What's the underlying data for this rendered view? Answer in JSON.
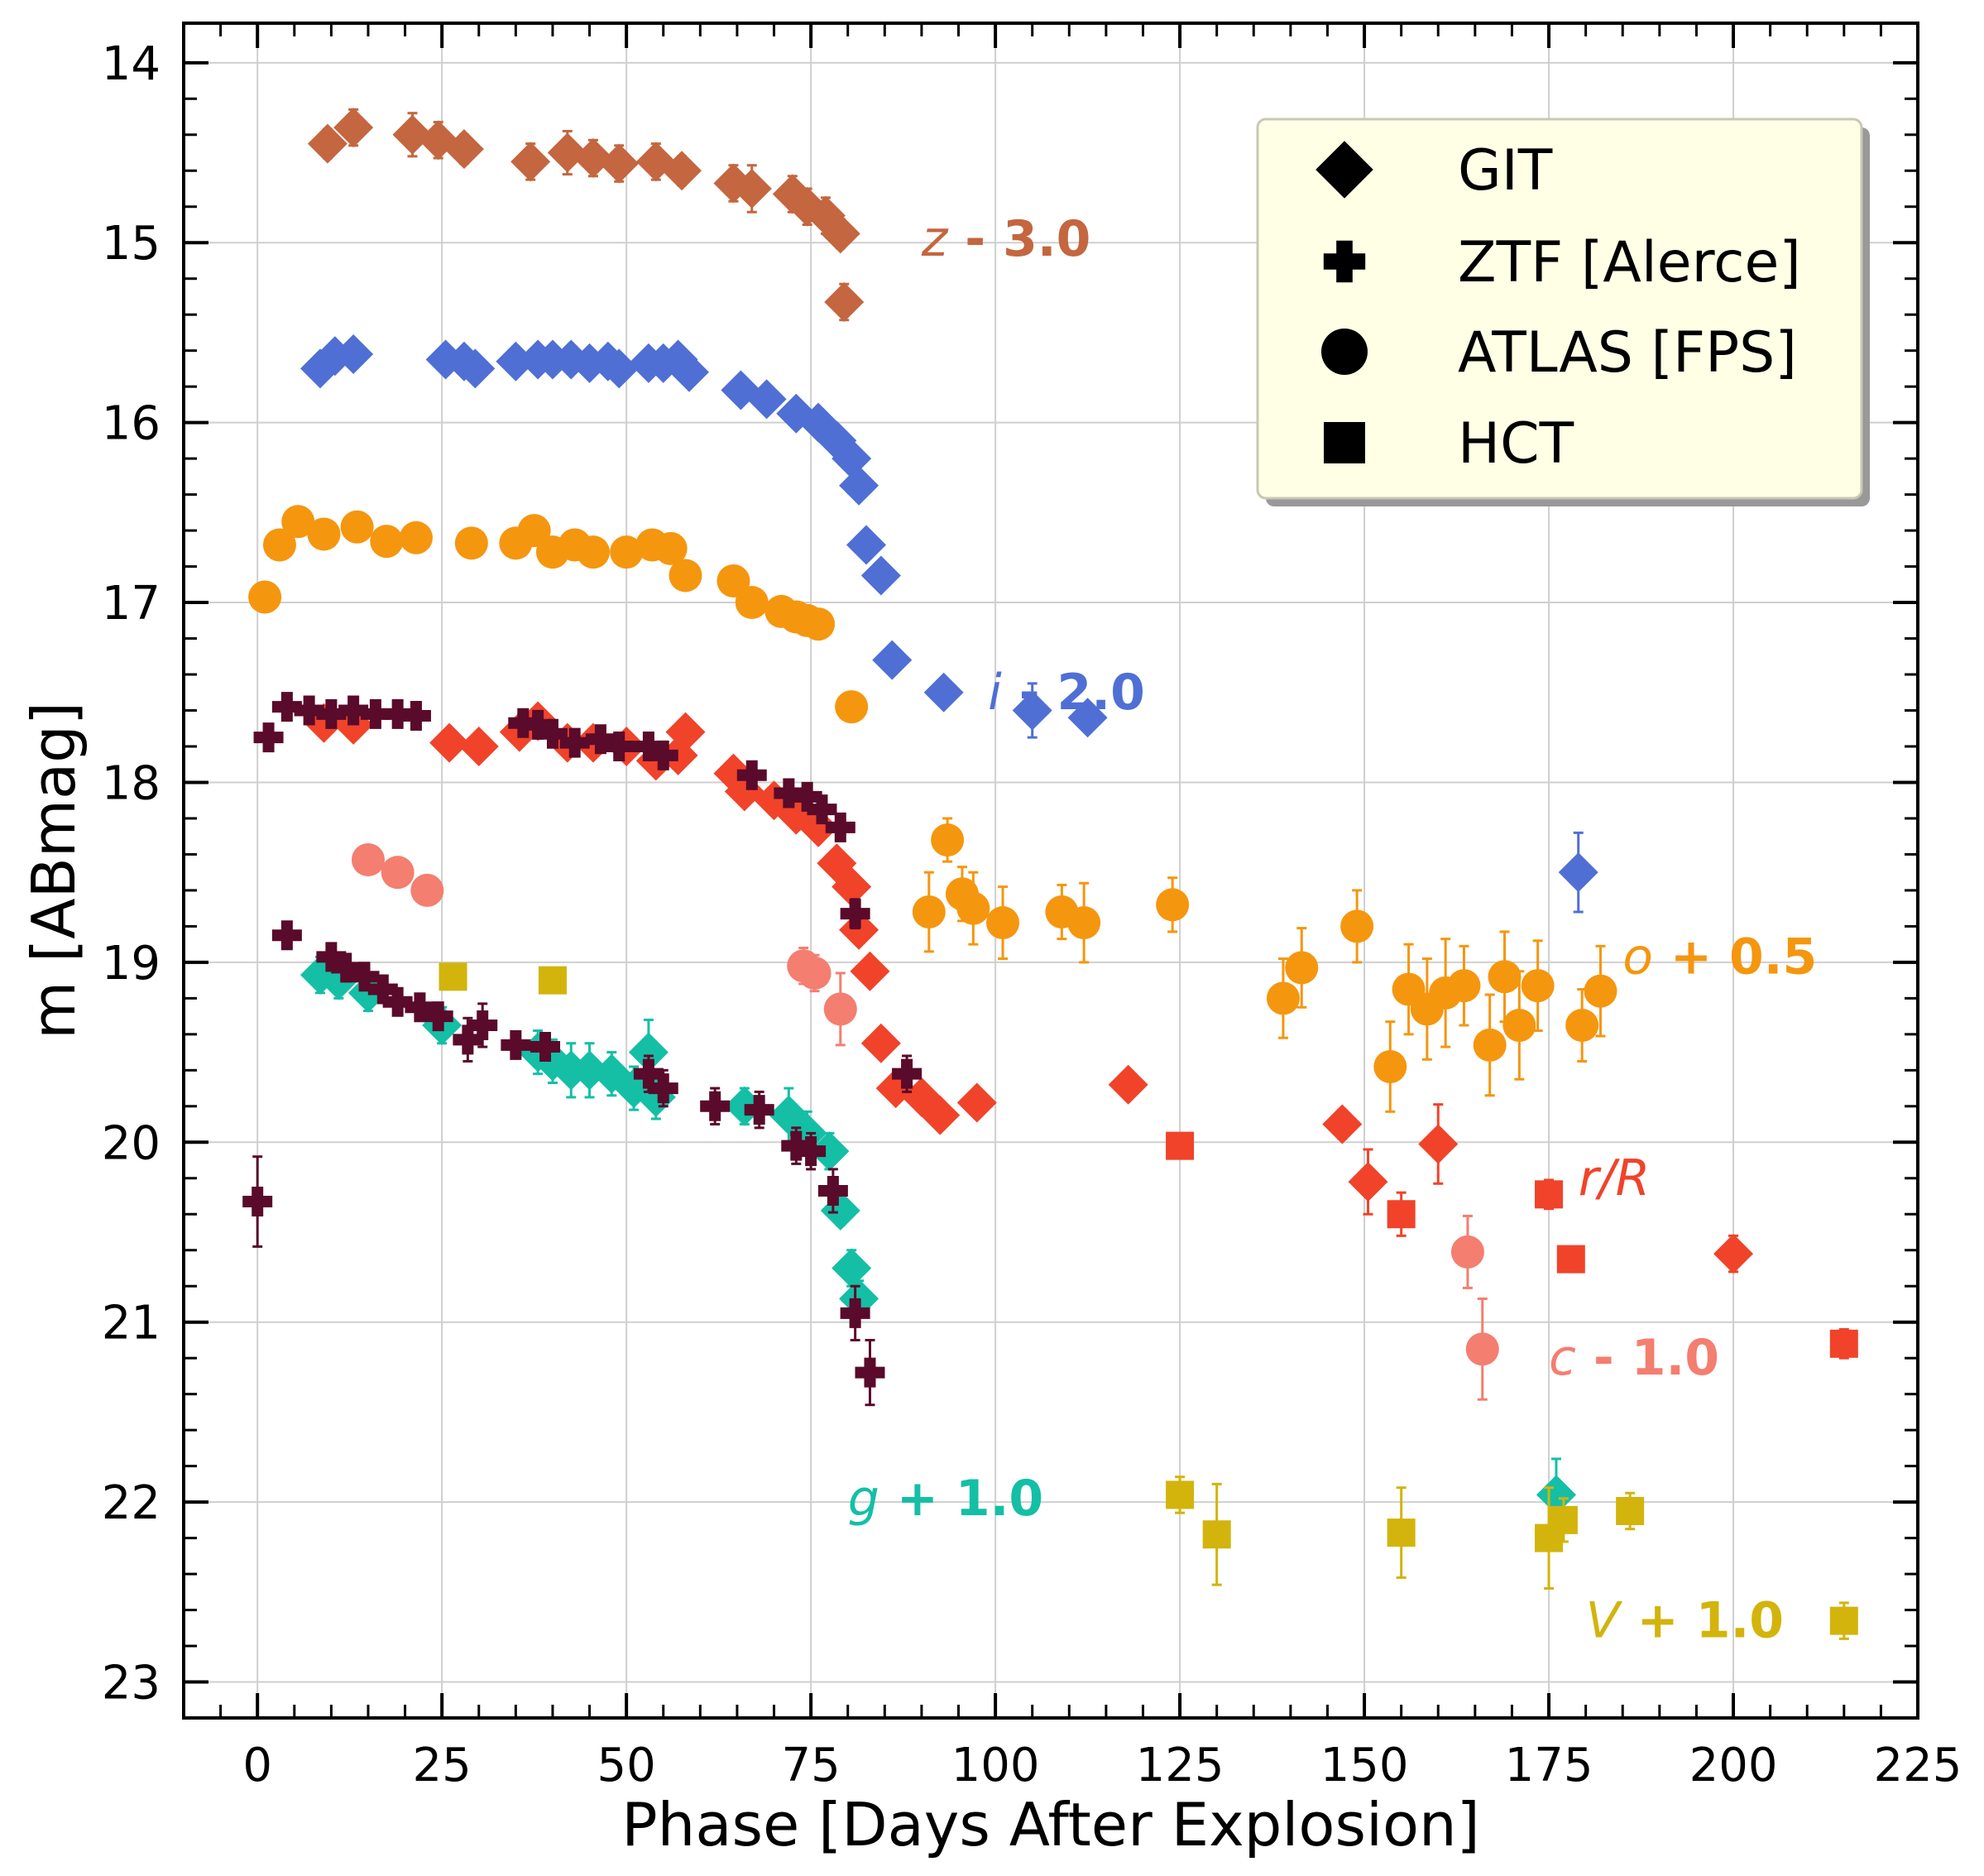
{
  "chart_data": {
    "type": "scatter",
    "xlabel": "Phase [Days After Explosion]",
    "ylabel": "m [ABmag]",
    "xlim": [
      -10,
      225
    ],
    "ylim": [
      23.2,
      13.78
    ],
    "y_inverted": true,
    "grid": true,
    "legend_position": "top-right",
    "x_ticks": [
      0,
      25,
      50,
      75,
      100,
      125,
      150,
      175,
      200,
      225
    ],
    "x_tick_labels": [
      "0",
      "25",
      "50",
      "75",
      "100",
      "125",
      "150",
      "175",
      "200",
      "225"
    ],
    "y_ticks": [
      14,
      15,
      16,
      17,
      18,
      19,
      20,
      21,
      22,
      23
    ],
    "y_tick_labels": [
      "14",
      "15",
      "16",
      "17",
      "18",
      "19",
      "20",
      "21",
      "22",
      "23"
    ],
    "legend": [
      {
        "label": "GIT",
        "marker": "diamond"
      },
      {
        "label": "ZTF [Alerce]",
        "marker": "plus"
      },
      {
        "label": "ATLAS [FPS]",
        "marker": "circle"
      },
      {
        "label": "HCT",
        "marker": "square"
      }
    ],
    "annotations": [
      {
        "band": "z",
        "offset": " - 3.0",
        "x": 90,
        "y": 14.98,
        "color": "#c4663f"
      },
      {
        "band": "i",
        "offset": " - 2.0",
        "x": 99,
        "y": 17.5,
        "color": "#4f6fd5"
      },
      {
        "band": "o",
        "offset": " + 0.5",
        "x": 185,
        "y": 18.97,
        "color": "#f5960f"
      },
      {
        "band": "r/R",
        "offset": "",
        "x": 179,
        "y": 20.2,
        "color": "#f0432a"
      },
      {
        "band": "c",
        "offset": " - 1.0",
        "x": 175,
        "y": 21.2,
        "color": "#f47e70"
      },
      {
        "band": "g",
        "offset": " + 1.0",
        "x": 80,
        "y": 21.98,
        "color": "#14bfa6"
      },
      {
        "band": "V",
        "offset": " + 1.0",
        "x": 180,
        "y": 22.66,
        "color": "#d2b40c"
      }
    ],
    "series": [
      {
        "band": "z",
        "instrument": "GIT",
        "marker": "diamond",
        "color": "#c4663f",
        "x": [
          9.5,
          13,
          21,
          24.5,
          28,
          37,
          42,
          45.5,
          49,
          54,
          57.5,
          64.5,
          67,
          72.5,
          74.5,
          77,
          79,
          79.5
        ],
        "y": [
          14.45,
          14.36,
          14.4,
          14.43,
          14.48,
          14.55,
          14.5,
          14.53,
          14.56,
          14.55,
          14.6,
          14.67,
          14.7,
          14.73,
          14.8,
          14.85,
          14.95,
          15.33
        ],
        "err": [
          0.08,
          0.1,
          0.12,
          0.1,
          0.08,
          0.1,
          0.12,
          0.1,
          0.1,
          0.1,
          0.08,
          0.1,
          0.13,
          0.1,
          0.1,
          0.1,
          0.08,
          0.1
        ]
      },
      {
        "band": "i",
        "instrument": "GIT",
        "marker": "diamond",
        "color": "#4f6fd5",
        "x": [
          8.5,
          10.5,
          13,
          25.5,
          28,
          29.5,
          35,
          38,
          40,
          42.5,
          45,
          47.5,
          49,
          53,
          55,
          57,
          58.5,
          65.5,
          69,
          73,
          76,
          78.5,
          80.5,
          81.5,
          82.5,
          84.5,
          86,
          93,
          105,
          112.5,
          179
        ],
        "y": [
          15.7,
          15.63,
          15.62,
          15.65,
          15.66,
          15.7,
          15.66,
          15.65,
          15.65,
          15.65,
          15.67,
          15.66,
          15.7,
          15.67,
          15.67,
          15.65,
          15.72,
          15.82,
          15.87,
          15.95,
          16.0,
          16.1,
          16.2,
          16.35,
          16.68,
          16.85,
          17.32,
          17.5,
          17.6,
          17.64,
          18.5
        ],
        "err": [
          0.06,
          0.06,
          0.06,
          0.05,
          0.06,
          0.06,
          0.05,
          0.05,
          0.05,
          0.06,
          0.05,
          0.05,
          0.05,
          0.05,
          0.05,
          0.05,
          0.05,
          0.05,
          0.05,
          0.05,
          0.05,
          0.05,
          0.06,
          0.06,
          0.06,
          0.06,
          0.06,
          0.06,
          0.15,
          0.06,
          0.22
        ]
      },
      {
        "band": "o",
        "instrument": "ATLAS",
        "marker": "circle",
        "color": "#f5960f",
        "x": [
          1,
          3,
          5.5,
          9,
          13.5,
          17.5,
          21.5,
          29,
          35,
          37.5,
          40,
          43,
          45.5,
          50,
          53.5,
          56,
          58,
          64.5,
          67,
          71,
          73,
          74.5,
          76,
          80.5,
          91,
          93.5,
          95.5,
          97,
          101,
          109,
          112,
          124,
          139,
          141.5,
          149,
          153.5,
          156,
          158.5,
          161,
          163.5,
          167,
          169,
          171,
          173.5,
          179.5,
          182
        ],
        "y": [
          16.97,
          16.68,
          16.55,
          16.62,
          16.58,
          16.66,
          16.64,
          16.67,
          16.67,
          16.6,
          16.72,
          16.68,
          16.72,
          16.72,
          16.68,
          16.7,
          16.85,
          16.88,
          17.0,
          17.05,
          17.08,
          17.1,
          17.12,
          17.58,
          18.72,
          18.32,
          18.62,
          18.7,
          18.78,
          18.72,
          18.78,
          18.68,
          19.2,
          19.03,
          18.8,
          19.58,
          19.15,
          19.26,
          19.17,
          19.13,
          19.46,
          19.08,
          19.35,
          19.13,
          19.35,
          19.16
        ],
        "err": [
          0.05,
          0.05,
          0.05,
          0.05,
          0.05,
          0.05,
          0.05,
          0.05,
          0.05,
          0.05,
          0.05,
          0.05,
          0.05,
          0.05,
          0.05,
          0.05,
          0.05,
          0.05,
          0.06,
          0.06,
          0.06,
          0.06,
          0.06,
          0.06,
          0.22,
          0.12,
          0.15,
          0.2,
          0.2,
          0.15,
          0.22,
          0.15,
          0.22,
          0.22,
          0.2,
          0.25,
          0.25,
          0.28,
          0.3,
          0.22,
          0.28,
          0.25,
          0.3,
          0.25,
          0.2,
          0.25
        ]
      },
      {
        "band": "c",
        "instrument": "ATLAS",
        "marker": "circle",
        "color": "#f47e70",
        "x": [
          15,
          19,
          23,
          74,
          75.5,
          79,
          164,
          166
        ],
        "y": [
          18.43,
          18.5,
          18.6,
          19.02,
          19.06,
          19.26,
          20.61,
          21.15
        ],
        "err": [
          0.05,
          0.05,
          0.05,
          0.1,
          0.1,
          0.2,
          0.2,
          0.28
        ]
      },
      {
        "band": "r",
        "instrument": "GIT",
        "marker": "diamond",
        "color": "#f0432a",
        "x": [
          9,
          13,
          26,
          30,
          35.5,
          38,
          42,
          45.5,
          50,
          54,
          57,
          58,
          64.5,
          66,
          70,
          73,
          76,
          78.5,
          80.5,
          81.5,
          83,
          84.5,
          86.5,
          90,
          92.5,
          97.5,
          118,
          147,
          150.5,
          160,
          200
        ],
        "y": [
          17.67,
          17.68,
          17.78,
          17.8,
          17.72,
          17.66,
          17.78,
          17.78,
          17.8,
          17.88,
          17.85,
          17.72,
          17.95,
          18.05,
          18.1,
          18.18,
          18.25,
          18.45,
          18.58,
          18.82,
          19.05,
          19.45,
          19.7,
          19.75,
          19.85,
          19.78,
          19.68,
          19.9,
          20.22,
          20.01,
          20.62
        ],
        "err": [
          0.05,
          0.05,
          0.05,
          0.05,
          0.05,
          0.05,
          0.05,
          0.05,
          0.05,
          0.05,
          0.05,
          0.05,
          0.05,
          0.05,
          0.05,
          0.05,
          0.05,
          0.05,
          0.05,
          0.06,
          0.06,
          0.06,
          0.06,
          0.06,
          0.06,
          0.06,
          0.05,
          0.08,
          0.18,
          0.22,
          0.1
        ]
      },
      {
        "band": "R",
        "instrument": "HCT",
        "marker": "square",
        "color": "#f0432a",
        "x": [
          125,
          155,
          175,
          178,
          215
        ],
        "y": [
          20.02,
          20.4,
          20.29,
          20.65,
          21.12
        ],
        "err": [
          0.05,
          0.12,
          0.08,
          0.05,
          0.08
        ]
      },
      {
        "band": "r",
        "instrument": "ZTF",
        "marker": "plus",
        "color": "#5a0a2a",
        "x": [
          1.5,
          4,
          7,
          10,
          13,
          16,
          19,
          21.5,
          36,
          38,
          40,
          43,
          46.5,
          49,
          53,
          55,
          67,
          72,
          74.5,
          76.5,
          79,
          81
        ],
        "y": [
          17.75,
          17.58,
          17.6,
          17.62,
          17.6,
          17.62,
          17.62,
          17.63,
          17.67,
          17.68,
          17.73,
          17.78,
          17.76,
          17.8,
          17.8,
          17.85,
          17.96,
          18.06,
          18.08,
          18.15,
          18.25,
          18.73
        ],
        "err": [
          0.05,
          0.04,
          0.04,
          0.04,
          0.04,
          0.04,
          0.04,
          0.04,
          0.04,
          0.04,
          0.04,
          0.04,
          0.04,
          0.04,
          0.04,
          0.04,
          0.05,
          0.05,
          0.05,
          0.05,
          0.05,
          0.08
        ]
      },
      {
        "band": "g",
        "instrument": "GIT",
        "marker": "diamond",
        "color": "#14bfa6",
        "x": [
          8.5,
          11,
          15,
          25,
          38,
          40,
          42.5,
          45,
          48,
          51,
          53,
          54,
          66,
          72,
          74.5,
          77.5,
          79,
          80.5,
          81.5,
          176
        ],
        "y": [
          19.07,
          19.1,
          19.17,
          19.35,
          19.5,
          19.55,
          19.6,
          19.6,
          19.62,
          19.7,
          19.5,
          19.75,
          19.8,
          19.85,
          19.95,
          20.05,
          20.38,
          20.7,
          20.87,
          21.96
        ],
        "err": [
          0.1,
          0.1,
          0.1,
          0.1,
          0.12,
          0.12,
          0.15,
          0.15,
          0.12,
          0.12,
          0.18,
          0.12,
          0.1,
          0.15,
          0.12,
          0.1,
          0.08,
          0.1,
          0.1,
          0.2
        ]
      },
      {
        "band": "g",
        "instrument": "ZTF",
        "marker": "plus",
        "color": "#5a0a2a",
        "x": [
          0,
          4,
          10,
          12,
          14.5,
          17,
          19,
          22,
          24.5,
          28.5,
          30.5,
          35,
          39,
          53,
          55,
          62,
          68,
          73,
          75,
          78,
          81,
          83,
          88
        ],
        "y": [
          20.33,
          18.85,
          18.97,
          19.03,
          19.08,
          19.15,
          19.22,
          19.25,
          19.3,
          19.43,
          19.35,
          19.46,
          19.47,
          19.62,
          19.7,
          19.8,
          19.82,
          20.02,
          20.05,
          20.27,
          20.95,
          21.28,
          19.62
        ],
        "err": [
          0.25,
          0.05,
          0.05,
          0.05,
          0.05,
          0.05,
          0.05,
          0.05,
          0.05,
          0.12,
          0.12,
          0.05,
          0.05,
          0.1,
          0.1,
          0.1,
          0.1,
          0.1,
          0.1,
          0.12,
          0.15,
          0.18,
          0.1
        ]
      },
      {
        "band": "V",
        "instrument": "HCT",
        "marker": "square",
        "color": "#d2b40c",
        "x": [
          26.5,
          40,
          125,
          130,
          155,
          175,
          177,
          186,
          215
        ],
        "y": [
          19.08,
          19.1,
          21.96,
          22.18,
          22.17,
          22.2,
          22.1,
          22.05,
          22.66
        ],
        "err": [
          0.05,
          0.05,
          0.1,
          0.28,
          0.25,
          0.28,
          0.12,
          0.1,
          0.1
        ]
      }
    ]
  }
}
